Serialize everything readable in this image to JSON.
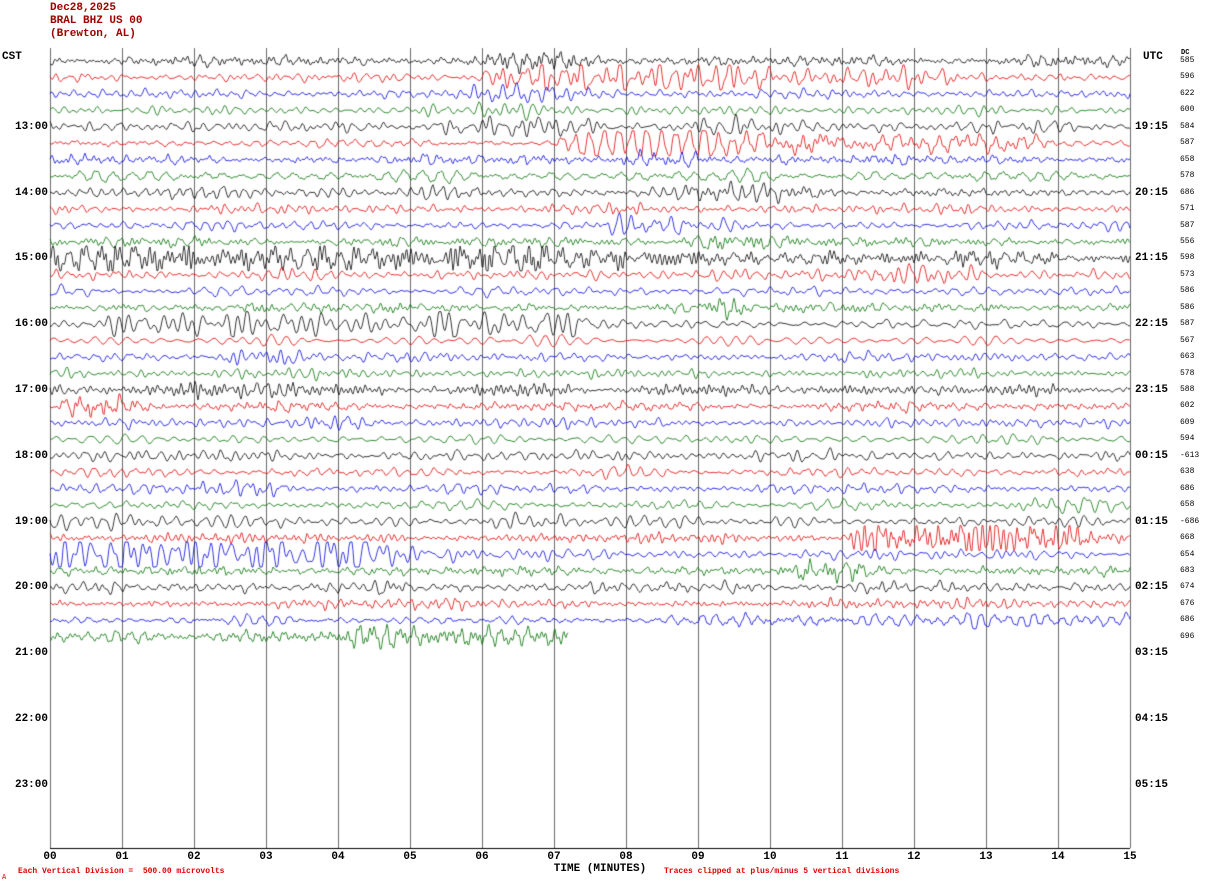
{
  "header": {
    "date": "Dec28,2025",
    "station": "BRAL BHZ US 00",
    "location": "(Brewton, AL)",
    "left_tz": "CST",
    "right_tz": "UTC",
    "dc_label": "DC"
  },
  "footer": {
    "xlabel": "TIME (MINUTES)",
    "left_note": "Each Vertical Division =  500.00 microvolts",
    "right_note": "Traces clipped at plus/minus 5 vertical divisions",
    "corner_mark": "A"
  },
  "axes": {
    "x_ticks": [
      "00",
      "01",
      "02",
      "03",
      "04",
      "05",
      "06",
      "07",
      "08",
      "09",
      "10",
      "11",
      "12",
      "13",
      "14",
      "15"
    ],
    "left_time_labels": [
      {
        "row": 4,
        "text": "13:00"
      },
      {
        "row": 8,
        "text": "14:00"
      },
      {
        "row": 12,
        "text": "15:00"
      },
      {
        "row": 16,
        "text": "16:00"
      },
      {
        "row": 20,
        "text": "17:00"
      },
      {
        "row": 24,
        "text": "18:00"
      },
      {
        "row": 28,
        "text": "19:00"
      },
      {
        "row": 32,
        "text": "20:00"
      },
      {
        "row": 36,
        "text": "21:00"
      },
      {
        "row": 40,
        "text": "22:00"
      },
      {
        "row": 44,
        "text": "23:00"
      }
    ],
    "right_time_labels": [
      {
        "row": 4,
        "text": "19:15"
      },
      {
        "row": 8,
        "text": "20:15"
      },
      {
        "row": 12,
        "text": "21:15"
      },
      {
        "row": 16,
        "text": "22:15"
      },
      {
        "row": 20,
        "text": "23:15"
      },
      {
        "row": 24,
        "text": "00:15"
      },
      {
        "row": 28,
        "text": "01:15"
      },
      {
        "row": 32,
        "text": "02:15"
      },
      {
        "row": 36,
        "text": "03:15"
      },
      {
        "row": 40,
        "text": "04:15"
      },
      {
        "row": 44,
        "text": "05:15"
      }
    ],
    "dc_values": [
      "585",
      "596",
      "622",
      "600",
      "584",
      "587",
      "658",
      "578",
      "686",
      "571",
      "587",
      "556",
      "598",
      "573",
      "586",
      "586",
      "587",
      "567",
      "663",
      "578",
      "588",
      "602",
      "609",
      "594",
      "-613",
      "638",
      "686",
      "658",
      "-686",
      "668",
      "654",
      "683",
      "674",
      "676",
      "686",
      "696"
    ]
  },
  "chart_data": {
    "type": "line",
    "title": "BRAL BHZ US 00 (Brewton, AL) helicorder seismogram Dec28,2025",
    "xlabel": "TIME (MINUTES)",
    "x_range_minutes": [
      0,
      15
    ],
    "rows_total": 48,
    "row_duration_minutes": 15,
    "first_row_start_cst": "12:00",
    "last_trace_end_cst": "20:52",
    "clip_divisions": 5,
    "microvolts_per_division": 500,
    "grid": true,
    "colors": {
      "black": "#000000",
      "red": "#e00000",
      "blue": "#0000dd",
      "green": "#007000"
    },
    "rows": [
      {
        "start_cst": "12:00",
        "color": "black",
        "amp": 3.2,
        "events": [
          {
            "s": 6.3,
            "e": 7.3,
            "a": 3
          }
        ]
      },
      {
        "start_cst": "12:15",
        "color": "red",
        "amp": 2.8,
        "events": [
          {
            "s": 6.2,
            "e": 9.6,
            "a": 8
          },
          {
            "s": 9.8,
            "e": 12.3,
            "a": 4
          }
        ]
      },
      {
        "start_cst": "12:30",
        "color": "blue",
        "amp": 2.8,
        "events": [
          {
            "s": 5.9,
            "e": 7.5,
            "a": 3.5
          }
        ]
      },
      {
        "start_cst": "12:45",
        "color": "green",
        "amp": 2.8,
        "events": [
          {
            "s": 6.0,
            "e": 7.0,
            "a": 3
          }
        ]
      },
      {
        "start_cst": "13:00",
        "color": "black",
        "amp": 3.4,
        "events": [
          {
            "s": 5.5,
            "e": 7.5,
            "a": 4
          },
          {
            "s": 9.0,
            "e": 10.0,
            "a": 3
          }
        ]
      },
      {
        "start_cst": "13:15",
        "color": "red",
        "amp": 2.8,
        "events": [
          {
            "s": 7.3,
            "e": 10.5,
            "a": 9
          },
          {
            "s": 10.5,
            "e": 13.5,
            "a": 8
          }
        ]
      },
      {
        "start_cst": "13:30",
        "color": "blue",
        "amp": 2.8,
        "events": [
          {
            "s": 8.0,
            "e": 9.0,
            "a": 3
          }
        ]
      },
      {
        "start_cst": "13:45",
        "color": "green",
        "amp": 2.8,
        "events": []
      },
      {
        "start_cst": "14:00",
        "color": "black",
        "amp": 3.4,
        "events": [
          {
            "s": 9.0,
            "e": 10.5,
            "a": 4
          }
        ]
      },
      {
        "start_cst": "14:15",
        "color": "red",
        "amp": 2.8,
        "events": []
      },
      {
        "start_cst": "14:30",
        "color": "blue",
        "amp": 2.8,
        "events": [
          {
            "s": 8.0,
            "e": 8.7,
            "a": 4
          }
        ]
      },
      {
        "start_cst": "14:45",
        "color": "green",
        "amp": 3.0,
        "events": [
          {
            "s": 9.0,
            "e": 9.6,
            "a": 4
          }
        ]
      },
      {
        "start_cst": "15:00",
        "color": "black",
        "amp": 4.2,
        "events": [
          {
            "s": 0,
            "e": 6.5,
            "a": 5.5
          },
          {
            "s": 6.5,
            "e": 9.5,
            "a": 3
          }
        ]
      },
      {
        "start_cst": "15:15",
        "color": "red",
        "amp": 3.2,
        "events": [
          {
            "s": 10.5,
            "e": 12.5,
            "a": 3.5
          }
        ]
      },
      {
        "start_cst": "15:30",
        "color": "blue",
        "amp": 2.8,
        "events": []
      },
      {
        "start_cst": "15:45",
        "color": "green",
        "amp": 2.8,
        "events": [
          {
            "s": 9.0,
            "e": 9.6,
            "a": 3.5
          }
        ]
      },
      {
        "start_cst": "16:00",
        "color": "black",
        "amp": 3.8,
        "events": [
          {
            "s": 1.0,
            "e": 5.5,
            "a": 4
          },
          {
            "s": 5.5,
            "e": 7.2,
            "a": 7
          }
        ]
      },
      {
        "start_cst": "16:15",
        "color": "red",
        "amp": 2.8,
        "events": []
      },
      {
        "start_cst": "16:30",
        "color": "blue",
        "amp": 2.8,
        "events": [
          {
            "s": 2.5,
            "e": 3.3,
            "a": 4.5
          }
        ]
      },
      {
        "start_cst": "16:45",
        "color": "green",
        "amp": 2.8,
        "events": []
      },
      {
        "start_cst": "17:00",
        "color": "black",
        "amp": 3.4,
        "events": [
          {
            "s": 2.0,
            "e": 3.0,
            "a": 4
          }
        ]
      },
      {
        "start_cst": "17:15",
        "color": "red",
        "amp": 2.8,
        "events": [
          {
            "s": 0.4,
            "e": 0.95,
            "a": 6
          }
        ]
      },
      {
        "start_cst": "17:30",
        "color": "blue",
        "amp": 2.8,
        "events": [
          {
            "s": 3.5,
            "e": 4.2,
            "a": 4
          }
        ]
      },
      {
        "start_cst": "17:45",
        "color": "green",
        "amp": 2.8,
        "events": []
      },
      {
        "start_cst": "18:00",
        "color": "black",
        "amp": 3.4,
        "events": []
      },
      {
        "start_cst": "18:15",
        "color": "red",
        "amp": 2.8,
        "events": []
      },
      {
        "start_cst": "18:30",
        "color": "blue",
        "amp": 2.8,
        "events": [
          {
            "s": 2.2,
            "e": 3.0,
            "a": 4
          }
        ]
      },
      {
        "start_cst": "18:45",
        "color": "green",
        "amp": 2.8,
        "events": [
          {
            "s": 13.5,
            "e": 14.5,
            "a": 3
          }
        ]
      },
      {
        "start_cst": "19:00",
        "color": "black",
        "amp": 3.4,
        "events": [
          {
            "s": 0,
            "e": 1.0,
            "a": 4
          },
          {
            "s": 6.0,
            "e": 7.0,
            "a": 3
          }
        ]
      },
      {
        "start_cst": "19:15",
        "color": "red",
        "amp": 2.8,
        "events": [
          {
            "s": 11.3,
            "e": 12.8,
            "a": 9
          },
          {
            "s": 12.8,
            "e": 14.2,
            "a": 7
          }
        ]
      },
      {
        "start_cst": "19:30",
        "color": "blue",
        "amp": 3.2,
        "events": [
          {
            "s": 0,
            "e": 4.3,
            "a": 11
          },
          {
            "s": 4.3,
            "e": 5.5,
            "a": 3.5
          }
        ]
      },
      {
        "start_cst": "19:45",
        "color": "green",
        "amp": 3.0,
        "events": [
          {
            "s": 10.4,
            "e": 11.2,
            "a": 3.5
          }
        ]
      },
      {
        "start_cst": "20:00",
        "color": "black",
        "amp": 3.4,
        "events": []
      },
      {
        "start_cst": "20:15",
        "color": "red",
        "amp": 2.8,
        "events": []
      },
      {
        "start_cst": "20:30",
        "color": "blue",
        "amp": 2.4,
        "events": [
          {
            "s": 8.5,
            "e": 15,
            "a": 2.5
          }
        ]
      },
      {
        "start_cst": "20:45",
        "color": "green",
        "amp": 4.5,
        "end_min": 7.2,
        "events": [
          {
            "s": 4.3,
            "e": 7.2,
            "a": 5
          }
        ]
      }
    ]
  }
}
